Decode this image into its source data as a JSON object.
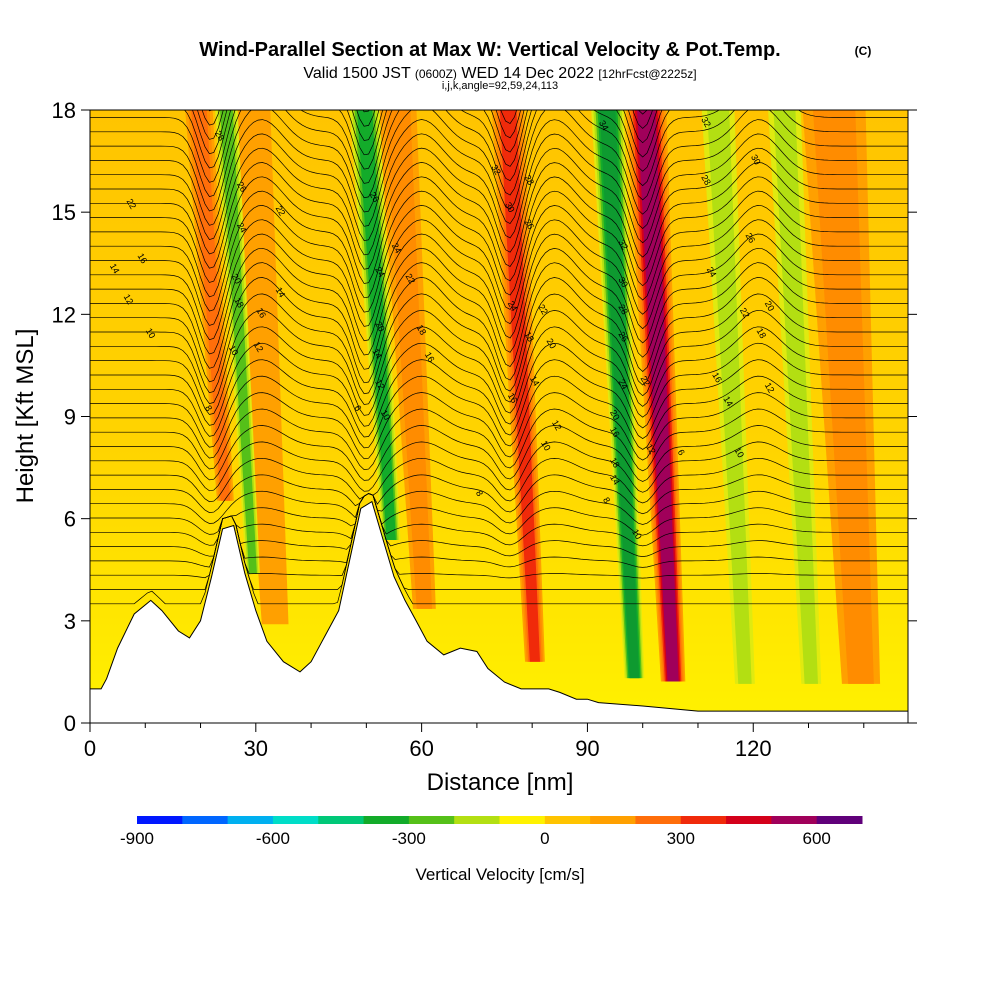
{
  "chart_data": {
    "type": "heatmap",
    "title": "Wind-Parallel Section at Max W: Vertical Velocity & Pot.Temp.",
    "title_unit": "(C)",
    "subtitle_main": "Valid 1500 JST",
    "subtitle_utc": "(0600Z)",
    "subtitle_date": "WED 14 Dec 2022",
    "subtitle_fcst": "[12hrFcst@2225z]",
    "subtitle_grid": "i,j,k,angle=92,59,24,113",
    "xlabel": "Distance [nm]",
    "ylabel": "Height [Kft MSL]",
    "xlim": [
      0,
      148
    ],
    "ylim": [
      0,
      18
    ],
    "x_ticks": [
      "0",
      "30",
      "60",
      "90",
      "120"
    ],
    "y_ticks": [
      "0",
      "3",
      "6",
      "9",
      "12",
      "15",
      "18"
    ],
    "colorbar": {
      "label": "Vertical Velocity [cm/s]",
      "tick_labels": [
        "-900",
        "-600",
        "-300",
        "0",
        "300",
        "600"
      ],
      "colors": [
        "#0018ff",
        "#0066ff",
        "#00b0f0",
        "#00ddc8",
        "#00c878",
        "#13ab2a",
        "#55c019",
        "#b3df12",
        "#fff200",
        "#ffc400",
        "#ffa000",
        "#ff6e0a",
        "#f02a0a",
        "#d4001a",
        "#a0005a",
        "#60007a"
      ]
    },
    "terrain_kft": [
      [
        0,
        1.0
      ],
      [
        2,
        1.0
      ],
      [
        3,
        1.3
      ],
      [
        5,
        2.2
      ],
      [
        8,
        3.2
      ],
      [
        11,
        3.6
      ],
      [
        13,
        3.3
      ],
      [
        16,
        2.7
      ],
      [
        18,
        2.5
      ],
      [
        20,
        3.0
      ],
      [
        22,
        4.3
      ],
      [
        24,
        5.7
      ],
      [
        26,
        5.8
      ],
      [
        28,
        4.4
      ],
      [
        30,
        3.3
      ],
      [
        32,
        2.4
      ],
      [
        35,
        1.8
      ],
      [
        38,
        1.5
      ],
      [
        40,
        1.8
      ],
      [
        42,
        2.4
      ],
      [
        45,
        3.3
      ],
      [
        47,
        4.8
      ],
      [
        49,
        6.3
      ],
      [
        51,
        6.5
      ],
      [
        53,
        5.4
      ],
      [
        55,
        4.3
      ],
      [
        57,
        3.6
      ],
      [
        59,
        3.0
      ],
      [
        61,
        2.4
      ],
      [
        64,
        2.0
      ],
      [
        67,
        2.2
      ],
      [
        70,
        2.1
      ],
      [
        72,
        1.6
      ],
      [
        75,
        1.2
      ],
      [
        78,
        1.0
      ],
      [
        83,
        1.0
      ],
      [
        85,
        0.9
      ],
      [
        88,
        0.7
      ],
      [
        90,
        0.7
      ],
      [
        92,
        0.6
      ],
      [
        100,
        0.5
      ],
      [
        110,
        0.35
      ],
      [
        148,
        0.35
      ]
    ],
    "updraft_bands": [
      {
        "x": 22,
        "w": 2.2,
        "level": 3
      },
      {
        "x": 31,
        "w": 3.5,
        "level": 1
      },
      {
        "x": 58,
        "w": 3.0,
        "level": 2
      },
      {
        "x": 78,
        "w": 2.6,
        "level": 4
      },
      {
        "x": 103,
        "w": 3.2,
        "level": 6
      },
      {
        "x": 137,
        "w": 5.0,
        "level": 2
      }
    ],
    "downdraft_bands": [
      {
        "x": 27,
        "w": 1.8,
        "level": -3
      },
      {
        "x": 52,
        "w": 2.4,
        "level": -4
      },
      {
        "x": 96,
        "w": 2.6,
        "level": -5
      },
      {
        "x": 116,
        "w": 2.6,
        "level": -2
      },
      {
        "x": 128,
        "w": 2.6,
        "level": -2
      }
    ],
    "contour_labels": [
      {
        "x": 23,
        "y": 17.2,
        "t": "28"
      },
      {
        "x": 27,
        "y": 15.7,
        "t": "26"
      },
      {
        "x": 27,
        "y": 14.5,
        "t": "24"
      },
      {
        "x": 26,
        "y": 13.0,
        "t": "20"
      },
      {
        "x": 26.5,
        "y": 12.3,
        "t": "18"
      },
      {
        "x": 25.5,
        "y": 10.9,
        "t": "10"
      },
      {
        "x": 30,
        "y": 11.0,
        "t": "12"
      },
      {
        "x": 30.5,
        "y": 12.0,
        "t": "16"
      },
      {
        "x": 34,
        "y": 15.0,
        "t": "22"
      },
      {
        "x": 34,
        "y": 12.6,
        "t": "14"
      },
      {
        "x": 7,
        "y": 15.2,
        "t": "22"
      },
      {
        "x": 9,
        "y": 13.6,
        "t": "16"
      },
      {
        "x": 4,
        "y": 13.3,
        "t": "14"
      },
      {
        "x": 6.5,
        "y": 12.4,
        "t": "12"
      },
      {
        "x": 10.5,
        "y": 11.4,
        "t": "10"
      },
      {
        "x": 21,
        "y": 9.2,
        "t": "8"
      },
      {
        "x": 51,
        "y": 15.4,
        "t": "26"
      },
      {
        "x": 55,
        "y": 13.9,
        "t": "24"
      },
      {
        "x": 52,
        "y": 13.2,
        "t": "24"
      },
      {
        "x": 57.5,
        "y": 13.0,
        "t": "22"
      },
      {
        "x": 52,
        "y": 11.6,
        "t": "20"
      },
      {
        "x": 59.5,
        "y": 11.5,
        "t": "18"
      },
      {
        "x": 51.5,
        "y": 10.8,
        "t": "14"
      },
      {
        "x": 61,
        "y": 10.7,
        "t": "16"
      },
      {
        "x": 52,
        "y": 9.9,
        "t": "12"
      },
      {
        "x": 53,
        "y": 9.0,
        "t": "10"
      },
      {
        "x": 48,
        "y": 9.2,
        "t": "6"
      },
      {
        "x": 73,
        "y": 16.2,
        "t": "32"
      },
      {
        "x": 79,
        "y": 15.9,
        "t": "28"
      },
      {
        "x": 75.5,
        "y": 15.1,
        "t": "30"
      },
      {
        "x": 79,
        "y": 14.6,
        "t": "26"
      },
      {
        "x": 76,
        "y": 12.2,
        "t": "24"
      },
      {
        "x": 81.5,
        "y": 12.1,
        "t": "22"
      },
      {
        "x": 79,
        "y": 11.3,
        "t": "18"
      },
      {
        "x": 83,
        "y": 11.1,
        "t": "20"
      },
      {
        "x": 80,
        "y": 10.0,
        "t": "14"
      },
      {
        "x": 76,
        "y": 9.5,
        "t": "16"
      },
      {
        "x": 84,
        "y": 8.7,
        "t": "12"
      },
      {
        "x": 82,
        "y": 8.1,
        "t": "10"
      },
      {
        "x": 70,
        "y": 6.7,
        "t": "8"
      },
      {
        "x": 92.5,
        "y": 17.5,
        "t": "34"
      },
      {
        "x": 96,
        "y": 14.0,
        "t": "32"
      },
      {
        "x": 96,
        "y": 12.9,
        "t": "30"
      },
      {
        "x": 96,
        "y": 12.1,
        "t": "28"
      },
      {
        "x": 96,
        "y": 11.3,
        "t": "26"
      },
      {
        "x": 100,
        "y": 10.0,
        "t": "22"
      },
      {
        "x": 96,
        "y": 9.9,
        "t": "24"
      },
      {
        "x": 94.5,
        "y": 9.0,
        "t": "20"
      },
      {
        "x": 94.5,
        "y": 8.5,
        "t": "16"
      },
      {
        "x": 94.5,
        "y": 7.6,
        "t": "18"
      },
      {
        "x": 94.5,
        "y": 7.1,
        "t": "14"
      },
      {
        "x": 101,
        "y": 8.0,
        "t": "12"
      },
      {
        "x": 93,
        "y": 6.5,
        "t": "8"
      },
      {
        "x": 98.5,
        "y": 5.5,
        "t": "10"
      },
      {
        "x": 106.5,
        "y": 7.9,
        "t": "6"
      },
      {
        "x": 111,
        "y": 17.6,
        "t": "32"
      },
      {
        "x": 120,
        "y": 16.5,
        "t": "30"
      },
      {
        "x": 111,
        "y": 15.9,
        "t": "28"
      },
      {
        "x": 119,
        "y": 14.2,
        "t": "26"
      },
      {
        "x": 112,
        "y": 13.2,
        "t": "24"
      },
      {
        "x": 118,
        "y": 12.0,
        "t": "22"
      },
      {
        "x": 122.5,
        "y": 12.2,
        "t": "20"
      },
      {
        "x": 121,
        "y": 11.4,
        "t": "18"
      },
      {
        "x": 113,
        "y": 10.1,
        "t": "16"
      },
      {
        "x": 115,
        "y": 9.4,
        "t": "14"
      },
      {
        "x": 122.5,
        "y": 9.8,
        "t": "12"
      },
      {
        "x": 117,
        "y": 7.9,
        "t": "10"
      }
    ]
  }
}
